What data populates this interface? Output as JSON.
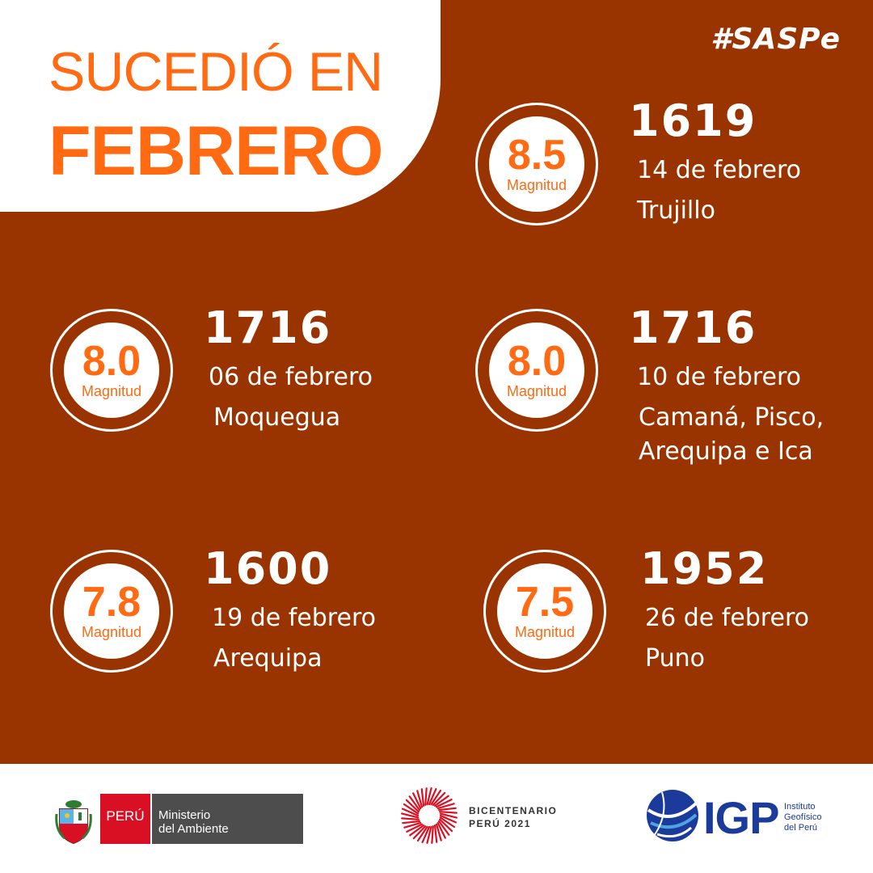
{
  "header": {
    "title_line1": "SUCEDIÓ EN",
    "title_line2": "FEBRERO",
    "hashtag": "#SASPe"
  },
  "events": [
    {
      "magnitude": "8.5",
      "magnitude_label": "Magnitud",
      "year": "1619",
      "date": "14 de febrero",
      "place": "Trujillo"
    },
    {
      "magnitude": "8.0",
      "magnitude_label": "Magnitud",
      "year": "1716",
      "date": "06 de febrero",
      "place": "Moquegua"
    },
    {
      "magnitude": "8.0",
      "magnitude_label": "Magnitud",
      "year": "1716",
      "date": "10 de febrero",
      "place": "Camaná, Pisco, Arequipa e Ica"
    },
    {
      "magnitude": "7.8",
      "magnitude_label": "Magnitud",
      "year": "1600",
      "date": "19 de febrero",
      "place": "Arequipa"
    },
    {
      "magnitude": "7.5",
      "magnitude_label": "Magnitud",
      "year": "1952",
      "date": "26 de febrero",
      "place": "Puno"
    }
  ],
  "footer": {
    "peru_label": "PERÚ",
    "ministry_line1": "Ministerio",
    "ministry_line2": "del Ambiente",
    "bicentenario_line1": "BICENTENARIO",
    "bicentenario_line2": "PERÚ 2021",
    "igp_label": "IGP",
    "igp_sub1": "Instituto",
    "igp_sub2": "Geofísico",
    "igp_sub3": "del Perú"
  },
  "colors": {
    "background": "#993300",
    "accent": "#ff6a13",
    "peru_red": "#d91023",
    "ministry_gray": "#4d4d4d",
    "igp_blue": "#1a3a9c"
  },
  "icons": {
    "shield": "peru-coat-of-arms-icon",
    "bicentenario": "bicentenario-sunburst-icon",
    "igp": "igp-globe-icon"
  }
}
